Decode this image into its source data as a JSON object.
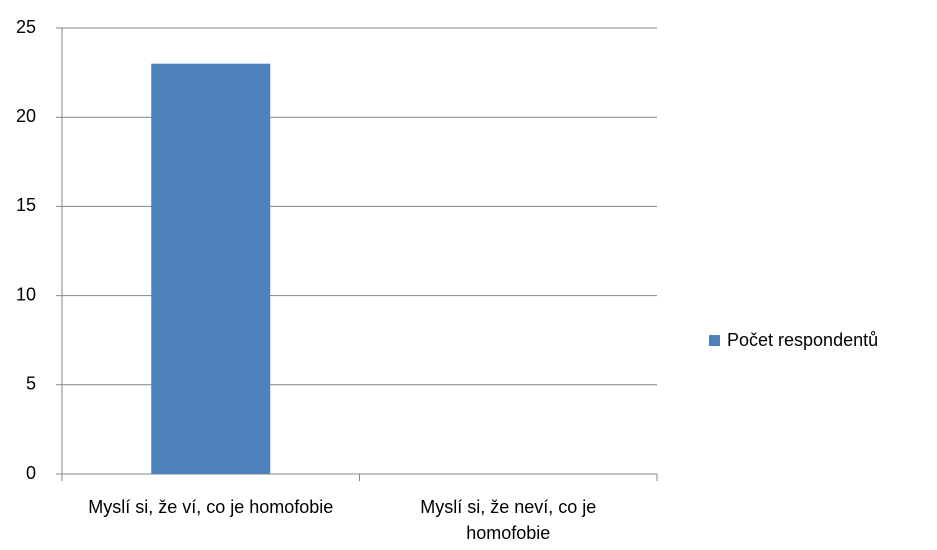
{
  "chart_data": {
    "type": "bar",
    "categories": [
      "Myslí si, že ví, co je homofobie",
      "Myslí si, že neví, co je homofobie"
    ],
    "series": [
      {
        "name": "Počet respondentů",
        "color": "#4f81bd",
        "values": [
          23,
          0
        ]
      }
    ],
    "ylim": [
      0,
      25
    ],
    "yticks": [
      0,
      5,
      10,
      15,
      20,
      25
    ],
    "grid": true,
    "legend": "right"
  }
}
